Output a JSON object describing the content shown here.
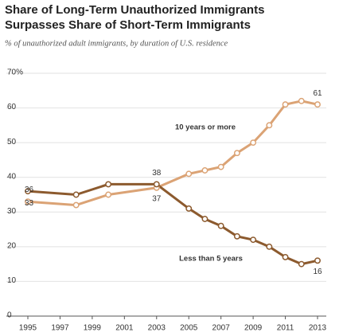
{
  "chart_data": {
    "type": "line",
    "title": [
      "Share of Long-Term Unauthorized Immigrants",
      "Surpasses Share of Short-Term Immigrants"
    ],
    "subtitle": "% of unauthorized adult immigrants, by duration of U.S. residence",
    "x": [
      1995,
      1998,
      2000,
      2003,
      2005,
      2006,
      2007,
      2008,
      2009,
      2010,
      2011,
      2012,
      2013
    ],
    "series": [
      {
        "name": "10 years or more",
        "color": "#dba375",
        "values": [
          33,
          32,
          35,
          37,
          41,
          42,
          43,
          47,
          50,
          55,
          61,
          62,
          61
        ]
      },
      {
        "name": "Less than 5 years",
        "color": "#8c5a2e",
        "values": [
          36,
          35,
          38,
          38,
          31,
          28,
          26,
          23,
          22,
          20,
          17,
          15,
          16
        ]
      }
    ],
    "labeled_x": [
      1995,
      2003,
      2013
    ],
    "xlim": [
      1995,
      2013
    ],
    "xticks": [
      1995,
      1997,
      1999,
      2001,
      2003,
      2005,
      2007,
      2009,
      2011,
      2013
    ],
    "ylim": [
      0,
      70
    ],
    "yticks": [
      0,
      10,
      20,
      30,
      40,
      50,
      60,
      {
        "value": 70,
        "label": "70%"
      }
    ],
    "grid": true
  }
}
